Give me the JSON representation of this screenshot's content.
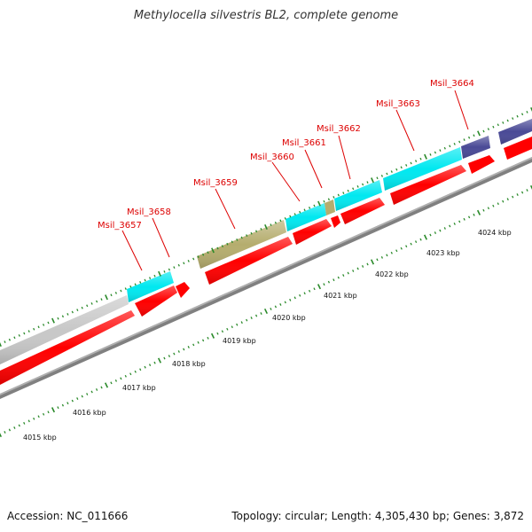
{
  "title": "Methylocella silvestris BL2, complete genome",
  "footer": {
    "accession": "Accession: NC_011666",
    "topology": "Topology: circular; Length: 4,305,430 bp; Genes: 3,872"
  },
  "colors": {
    "cds": "#ff0000",
    "gene_cyan": "#00ffff",
    "gene_olive": "#b5ad6e",
    "gene_navy": "#4a4a96",
    "gene_grey": "#c8c8c8",
    "backbone": "#808080",
    "tick": "#2a8a2a",
    "label": "#dd0000"
  },
  "scale_labels": [
    "4015 kbp",
    "4016 kbp",
    "4017 kbp",
    "4018 kbp",
    "4019 kbp",
    "4020 kbp",
    "4021 kbp",
    "4022 kbp",
    "4023 kbp",
    "4024 kbp"
  ],
  "gene_labels": [
    "Msil_3657",
    "Msil_3658",
    "Msil_3659",
    "Msil_3660",
    "Msil_3661",
    "Msil_3662",
    "Msil_3663",
    "Msil_3664"
  ]
}
